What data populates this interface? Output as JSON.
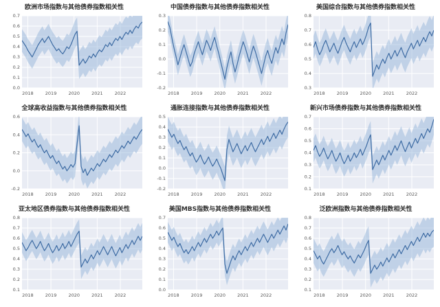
{
  "page": {
    "background": "#ffffff"
  },
  "style": {
    "line_color": "#3d6ba3",
    "band_color": "#8fb2d8",
    "band_opacity": 0.45,
    "panel_color": "#e9ecf4",
    "grid_color": "#ffffff",
    "title_color": "#2f2f2f",
    "tick_color": "#555555"
  },
  "x_axis": {
    "min": 2017.75,
    "max": 2022.95,
    "ticks": [
      "2018",
      "2019",
      "2020",
      "2021",
      "2022"
    ]
  },
  "chart_data": [
    {
      "type": "line",
      "title": "欧洲市场指数与其他债券指数相关性",
      "xlabel": "",
      "ylabel": "",
      "ymin": 0.0,
      "ymax": 0.7,
      "ystep": 0.1,
      "band_halfwidth": [
        0.11,
        0.16
      ],
      "values": [
        0.46,
        0.43,
        0.4,
        0.36,
        0.33,
        0.3,
        0.34,
        0.38,
        0.42,
        0.45,
        0.48,
        0.44,
        0.47,
        0.5,
        0.46,
        0.42,
        0.39,
        0.36,
        0.38,
        0.35,
        0.33,
        0.36,
        0.4,
        0.38,
        0.42,
        0.47,
        0.52,
        0.55,
        0.22,
        0.25,
        0.28,
        0.24,
        0.27,
        0.31,
        0.29,
        0.33,
        0.3,
        0.34,
        0.37,
        0.35,
        0.38,
        0.42,
        0.4,
        0.44,
        0.41,
        0.45,
        0.48,
        0.46,
        0.5,
        0.47,
        0.51,
        0.54,
        0.52,
        0.56,
        0.53,
        0.57,
        0.6,
        0.58,
        0.62,
        0.64
      ]
    },
    {
      "type": "line",
      "title": "中国债券指数与其他债券指数相关性",
      "xlabel": "",
      "ylabel": "",
      "ymin": -0.2,
      "ymax": 0.3,
      "ystep": 0.1,
      "band_halfwidth": [
        0.07,
        0.09
      ],
      "values": [
        0.26,
        0.22,
        0.15,
        0.08,
        0.02,
        -0.04,
        0.01,
        0.06,
        0.1,
        0.05,
        0.0,
        -0.05,
        -0.02,
        0.04,
        0.08,
        0.12,
        0.07,
        0.03,
        0.08,
        0.13,
        0.1,
        0.06,
        0.11,
        0.15,
        0.09,
        0.04,
        -0.02,
        -0.08,
        -0.14,
        -0.06,
        0.0,
        0.05,
        -0.03,
        -0.09,
        -0.04,
        0.02,
        0.07,
        0.12,
        0.08,
        0.03,
        -0.02,
        0.04,
        0.09,
        0.05,
        0.0,
        -0.05,
        -0.1,
        -0.04,
        0.02,
        0.06,
        0.01,
        -0.03,
        0.03,
        0.08,
        0.04,
        0.09,
        0.14,
        0.1,
        0.18,
        0.24
      ]
    },
    {
      "type": "line",
      "title": "美国综合指数与其他债券指数相关性",
      "xlabel": "",
      "ylabel": "",
      "ymin": 0.3,
      "ymax": 0.8,
      "ystep": 0.1,
      "band_halfwidth": [
        0.08,
        0.11
      ],
      "values": [
        0.58,
        0.62,
        0.57,
        0.53,
        0.56,
        0.6,
        0.63,
        0.59,
        0.55,
        0.58,
        0.61,
        0.57,
        0.54,
        0.58,
        0.62,
        0.65,
        0.61,
        0.58,
        0.55,
        0.59,
        0.62,
        0.58,
        0.61,
        0.64,
        0.6,
        0.63,
        0.67,
        0.72,
        0.75,
        0.38,
        0.42,
        0.46,
        0.43,
        0.47,
        0.5,
        0.47,
        0.51,
        0.54,
        0.5,
        0.53,
        0.56,
        0.52,
        0.55,
        0.58,
        0.54,
        0.51,
        0.55,
        0.58,
        0.61,
        0.57,
        0.6,
        0.63,
        0.59,
        0.62,
        0.65,
        0.62,
        0.66,
        0.69,
        0.66,
        0.7
      ]
    },
    {
      "type": "line",
      "title": "全球高收益指数与其他债券指数相关性",
      "xlabel": "",
      "ylabel": "",
      "ymin": -0.2,
      "ymax": 0.6,
      "ystep": 0.2,
      "band_halfwidth": [
        0.13,
        0.16
      ],
      "values": [
        0.46,
        0.42,
        0.38,
        0.41,
        0.36,
        0.32,
        0.35,
        0.3,
        0.26,
        0.29,
        0.24,
        0.2,
        0.23,
        0.18,
        0.14,
        0.17,
        0.12,
        0.08,
        0.11,
        0.06,
        0.02,
        0.05,
        0.0,
        0.03,
        0.07,
        0.04,
        0.08,
        0.3,
        0.5,
        0.05,
        -0.02,
        0.02,
        -0.05,
        -0.01,
        0.03,
        0.0,
        0.04,
        0.08,
        0.05,
        0.09,
        0.13,
        0.1,
        0.14,
        0.18,
        0.15,
        0.19,
        0.23,
        0.2,
        0.24,
        0.28,
        0.25,
        0.29,
        0.33,
        0.3,
        0.34,
        0.38,
        0.35,
        0.39,
        0.43,
        0.46
      ]
    },
    {
      "type": "line",
      "title": "通胀连接指数与其他债券指数相关性",
      "xlabel": "",
      "ylabel": "",
      "ymin": -0.2,
      "ymax": 0.5,
      "ystep": 0.1,
      "band_halfwidth": [
        0.12,
        0.15
      ],
      "values": [
        0.38,
        0.34,
        0.3,
        0.33,
        0.28,
        0.24,
        0.27,
        0.22,
        0.18,
        0.21,
        0.16,
        0.12,
        0.15,
        0.1,
        0.06,
        0.09,
        0.13,
        0.08,
        0.04,
        0.07,
        0.11,
        0.06,
        0.02,
        0.05,
        0.09,
        0.04,
        0.0,
        -0.06,
        -0.12,
        0.18,
        0.28,
        0.22,
        0.16,
        0.2,
        0.24,
        0.19,
        0.14,
        0.18,
        0.22,
        0.17,
        0.21,
        0.25,
        0.2,
        0.16,
        0.2,
        0.24,
        0.28,
        0.23,
        0.27,
        0.31,
        0.26,
        0.3,
        0.34,
        0.29,
        0.33,
        0.37,
        0.33,
        0.38,
        0.42,
        0.45
      ]
    },
    {
      "type": "line",
      "title": "新兴市场债券指数与其他债券指数相关性",
      "xlabel": "",
      "ylabel": "",
      "ymin": 0.1,
      "ymax": 0.7,
      "ystep": 0.1,
      "band_halfwidth": [
        0.1,
        0.13
      ],
      "values": [
        0.42,
        0.46,
        0.41,
        0.37,
        0.4,
        0.44,
        0.39,
        0.35,
        0.38,
        0.42,
        0.37,
        0.33,
        0.36,
        0.4,
        0.35,
        0.31,
        0.34,
        0.38,
        0.33,
        0.36,
        0.4,
        0.36,
        0.39,
        0.43,
        0.38,
        0.42,
        0.46,
        0.51,
        0.55,
        0.26,
        0.3,
        0.34,
        0.3,
        0.34,
        0.38,
        0.34,
        0.38,
        0.42,
        0.38,
        0.42,
        0.46,
        0.42,
        0.46,
        0.5,
        0.45,
        0.41,
        0.45,
        0.49,
        0.44,
        0.48,
        0.52,
        0.48,
        0.52,
        0.56,
        0.52,
        0.56,
        0.6,
        0.57,
        0.62,
        0.68
      ]
    },
    {
      "type": "line",
      "title": "亚太地区债券指数与其他债券指数相关性",
      "xlabel": "",
      "ylabel": "",
      "ymin": 0.1,
      "ymax": 0.8,
      "ystep": 0.1,
      "band_halfwidth": [
        0.1,
        0.13
      ],
      "values": [
        0.56,
        0.52,
        0.48,
        0.51,
        0.55,
        0.58,
        0.54,
        0.5,
        0.53,
        0.57,
        0.52,
        0.48,
        0.51,
        0.55,
        0.5,
        0.46,
        0.49,
        0.53,
        0.48,
        0.51,
        0.55,
        0.5,
        0.53,
        0.57,
        0.52,
        0.56,
        0.6,
        0.64,
        0.67,
        0.32,
        0.36,
        0.4,
        0.36,
        0.4,
        0.44,
        0.4,
        0.44,
        0.48,
        0.44,
        0.48,
        0.52,
        0.48,
        0.44,
        0.48,
        0.52,
        0.47,
        0.43,
        0.47,
        0.51,
        0.46,
        0.5,
        0.54,
        0.5,
        0.54,
        0.58,
        0.54,
        0.58,
        0.62,
        0.58,
        0.62
      ]
    },
    {
      "type": "line",
      "title": "美国MBS指数与其他债券指数相关性",
      "xlabel": "",
      "ylabel": "",
      "ymin": 0.0,
      "ymax": 0.7,
      "ystep": 0.1,
      "band_halfwidth": [
        0.1,
        0.13
      ],
      "values": [
        0.56,
        0.52,
        0.48,
        0.51,
        0.46,
        0.42,
        0.45,
        0.4,
        0.36,
        0.39,
        0.35,
        0.38,
        0.42,
        0.38,
        0.42,
        0.46,
        0.42,
        0.46,
        0.5,
        0.46,
        0.5,
        0.54,
        0.5,
        0.53,
        0.57,
        0.53,
        0.57,
        0.6,
        0.25,
        0.16,
        0.22,
        0.28,
        0.33,
        0.29,
        0.34,
        0.38,
        0.34,
        0.38,
        0.42,
        0.38,
        0.42,
        0.46,
        0.42,
        0.46,
        0.5,
        0.46,
        0.5,
        0.54,
        0.5,
        0.46,
        0.5,
        0.54,
        0.5,
        0.54,
        0.58,
        0.54,
        0.58,
        0.62,
        0.58,
        0.64
      ]
    },
    {
      "type": "line",
      "title": "泛欧洲指数与其他债券指数相关性",
      "xlabel": "",
      "ylabel": "",
      "ymin": 0.1,
      "ymax": 0.8,
      "ystep": 0.1,
      "band_halfwidth": [
        0.12,
        0.16
      ],
      "values": [
        0.48,
        0.44,
        0.4,
        0.43,
        0.38,
        0.35,
        0.39,
        0.43,
        0.47,
        0.5,
        0.46,
        0.49,
        0.53,
        0.48,
        0.44,
        0.47,
        0.43,
        0.4,
        0.43,
        0.39,
        0.36,
        0.4,
        0.44,
        0.41,
        0.45,
        0.49,
        0.54,
        0.58,
        0.26,
        0.3,
        0.34,
        0.3,
        0.33,
        0.37,
        0.33,
        0.37,
        0.41,
        0.37,
        0.41,
        0.45,
        0.41,
        0.45,
        0.49,
        0.45,
        0.49,
        0.53,
        0.49,
        0.53,
        0.57,
        0.53,
        0.57,
        0.61,
        0.57,
        0.61,
        0.65,
        0.61,
        0.65,
        0.62,
        0.66,
        0.68
      ]
    }
  ]
}
